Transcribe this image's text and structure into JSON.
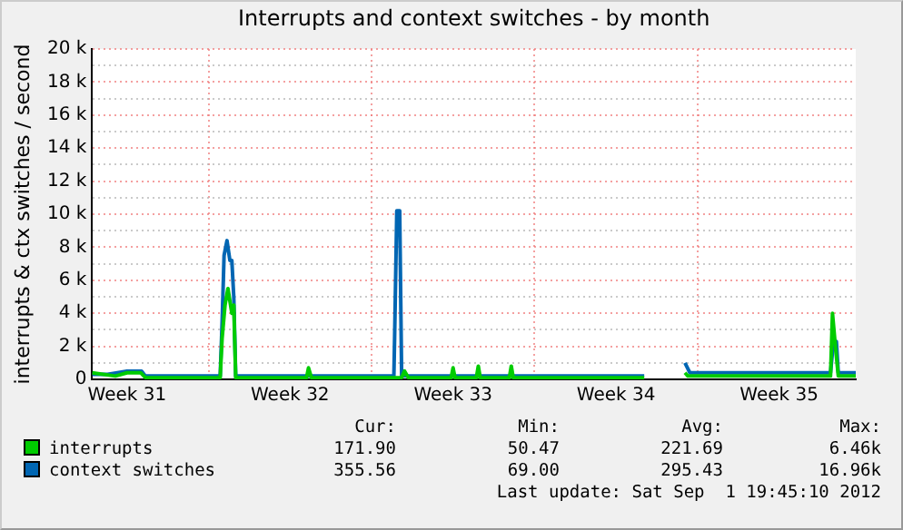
{
  "chart_data": {
    "type": "line",
    "title": "Interrupts and context switches - by month",
    "ylabel": "interrupts & ctx switches / second",
    "xlim": [
      "2012-07-31T00:00",
      "2012-09-01T19:00"
    ],
    "xticks": [
      {
        "value": "2012-08-01T12:00",
        "label": "Week 31"
      },
      {
        "value": "2012-08-05",
        "label": null
      },
      {
        "value": "2012-08-08T12:00",
        "label": "Week 32"
      },
      {
        "value": "2012-08-12",
        "label": null
      },
      {
        "value": "2012-08-15T12:00",
        "label": "Week 33"
      },
      {
        "value": "2012-08-19",
        "label": null
      },
      {
        "value": "2012-08-22T12:00",
        "label": "Week 34"
      },
      {
        "value": "2012-08-26",
        "label": null
      },
      {
        "value": "2012-08-29T12:00",
        "label": "Week 35"
      }
    ],
    "ylim": [
      0,
      20000
    ],
    "yticks": [
      0,
      {
        "value": 1000,
        "label": null
      },
      {
        "value": 2000,
        "label": "2 k"
      },
      {
        "value": 3000,
        "label": null
      },
      {
        "value": 4000,
        "label": "4 k"
      },
      {
        "value": 5000,
        "label": null
      },
      {
        "value": 6000,
        "label": "6 k"
      },
      {
        "value": 7000,
        "label": null
      },
      {
        "value": 8000,
        "label": "8 k"
      },
      {
        "value": 9000,
        "label": null
      },
      {
        "value": 10000,
        "label": "10 k"
      },
      {
        "value": 11000,
        "label": null
      },
      {
        "value": 12000,
        "label": "12 k"
      },
      {
        "value": 13000,
        "label": null
      },
      {
        "value": 14000,
        "label": "14 k"
      },
      {
        "value": 15000,
        "label": null
      },
      {
        "value": 16000,
        "label": "16 k"
      },
      {
        "value": 17000,
        "label": null
      },
      {
        "value": 18000,
        "label": "18 k"
      },
      {
        "value": 19000,
        "label": null
      },
      {
        "value": 20000,
        "label": "20 k"
      }
    ],
    "grid": true,
    "legend": "bottom",
    "marker": "none",
    "line_style": "solid",
    "series": [
      {
        "name": "interrupts",
        "color": "#00cc00",
        "x": [
          "2012-07-31T00:00",
          "2012-08-01T00:00",
          "2012-08-01T12:00",
          "2012-08-02T02:00",
          "2012-08-02T07:00",
          "2012-08-05T12:00",
          "2012-08-05T14:00",
          "2012-08-05T17:00",
          "2012-08-05T20:00",
          "2012-08-06T00:00",
          "2012-08-06T02:00",
          "2012-08-06T04:00",
          "2012-08-09T05:00",
          "2012-08-09T07:00",
          "2012-08-09T10:00",
          "2012-08-13T07:00",
          "2012-08-13T10:00",
          "2012-08-13T14:00",
          "2012-08-15T10:00",
          "2012-08-15T12:00",
          "2012-08-15T14:00",
          "2012-08-16T12:00",
          "2012-08-16T14:00",
          "2012-08-16T16:00",
          "2012-08-17T22:00",
          "2012-08-18T00:00",
          "2012-08-18T02:00",
          "2012-08-23T17:00",
          "2012-08-23T18:00",
          "2012-08-25T11:00",
          "2012-08-25T14:00",
          "2012-08-31T17:00",
          "2012-08-31T19:00",
          "2012-08-31T22:00",
          "2012-09-01T01:00",
          "2012-09-01T19:00"
        ],
        "values": [
          400,
          200,
          400,
          400,
          100,
          100,
          2500,
          4500,
          5500,
          4000,
          4500,
          100,
          100,
          700,
          100,
          100,
          500,
          100,
          100,
          700,
          100,
          100,
          800,
          100,
          100,
          800,
          100,
          100,
          null,
          400,
          200,
          200,
          4000,
          2000,
          200,
          200
        ]
      },
      {
        "name": "context switches",
        "color": "#0066b3",
        "x": [
          "2012-07-31T00:00",
          "2012-07-31T16:00",
          "2012-08-01T12:00",
          "2012-08-02T03:00",
          "2012-08-02T07:00",
          "2012-08-05T12:00",
          "2012-08-05T14:00",
          "2012-08-05T16:00",
          "2012-08-05T19:00",
          "2012-08-05T22:00",
          "2012-08-06T00:00",
          "2012-08-06T02:00",
          "2012-08-06T04:00",
          "2012-08-12T23:00",
          "2012-08-12T23:45",
          "2012-08-13T02:00",
          "2012-08-13T05:00",
          "2012-08-13T07:00",
          "2012-08-23T17:00",
          "2012-08-23T18:00",
          "2012-08-25T11:00",
          "2012-08-25T16:00",
          "2012-08-31T17:00",
          "2012-08-31T20:00",
          "2012-08-31T23:00",
          "2012-09-01T01:00",
          "2012-09-01T19:00"
        ],
        "values": [
          300,
          300,
          500,
          500,
          200,
          200,
          3500,
          7500,
          8400,
          7200,
          7200,
          5000,
          200,
          200,
          2500,
          10200,
          10200,
          200,
          200,
          null,
          1000,
          400,
          400,
          2300,
          2300,
          400,
          400
        ]
      }
    ],
    "annotations": [
      "Cur:",
      "Min:",
      "Avg:",
      "Max:",
      "171.90",
      "50.47",
      "221.69",
      "6.46k",
      "355.56",
      "69.00",
      "295.43",
      "16.96k",
      "Last update: Sat Sep  1 19:45:10 2012"
    ]
  }
}
